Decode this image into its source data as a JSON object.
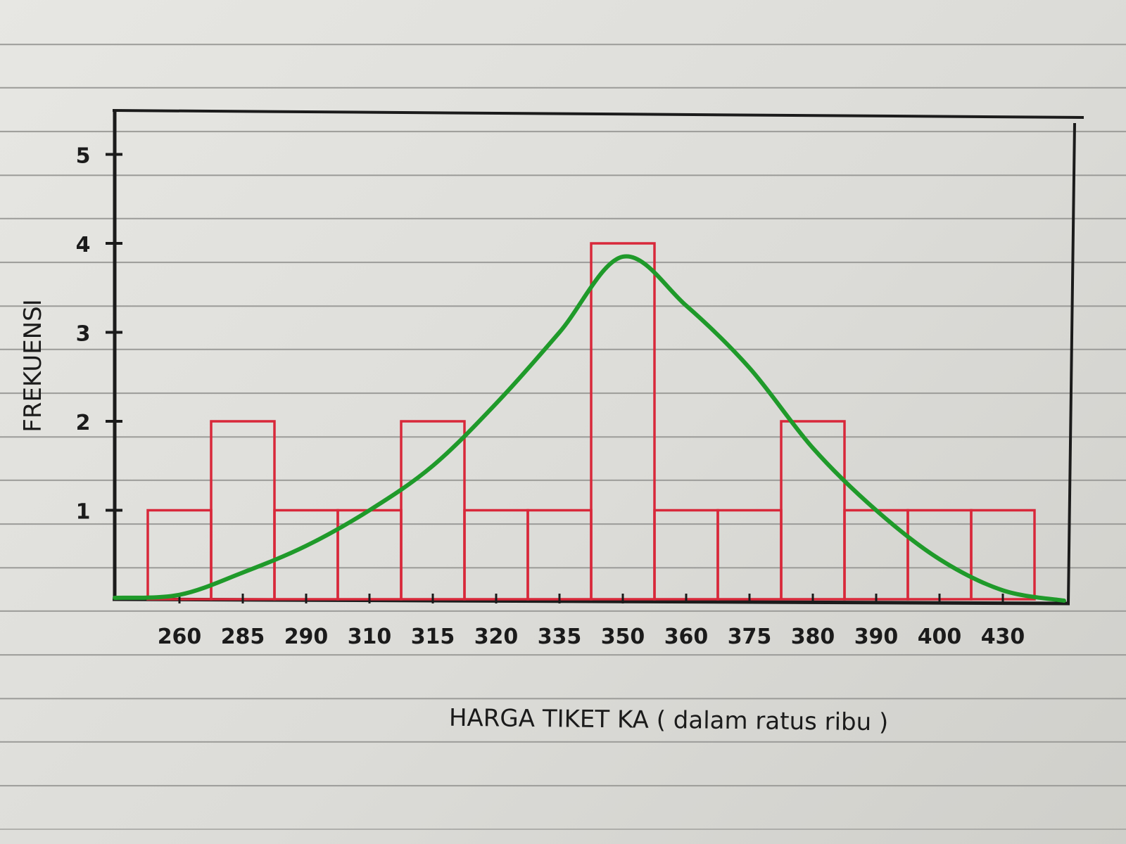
{
  "chart_data": {
    "type": "bar",
    "title": "",
    "xlabel": "HARGA TIKET KA ( dalam ratus ribu )",
    "ylabel": "FREKUENSI",
    "categories": [
      "260",
      "285",
      "290",
      "310",
      "315",
      "320",
      "335",
      "350",
      "360",
      "375",
      "380",
      "390",
      "400",
      "430"
    ],
    "values": [
      1,
      2,
      1,
      1,
      2,
      1,
      1,
      4,
      1,
      1,
      2,
      1,
      1,
      1
    ],
    "y_ticks": [
      "1",
      "2",
      "3",
      "4",
      "5"
    ],
    "ylim": [
      0,
      5.5
    ],
    "grid": false,
    "legend": "none",
    "overlay": {
      "type": "line",
      "description": "smooth frequency curve",
      "y": [
        0.05,
        0.3,
        0.6,
        1.0,
        1.5,
        2.2,
        3.0,
        3.85,
        3.3,
        2.6,
        1.7,
        1.0,
        0.45,
        0.1
      ]
    },
    "colors": {
      "bars": "#d8283a",
      "curve": "#1f9a2a",
      "axes": "#1b1b1b"
    }
  }
}
